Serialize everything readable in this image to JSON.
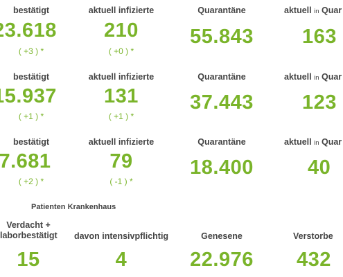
{
  "rows": [
    {
      "bestaetigt_label": "bestätigt",
      "bestaetigt_value": "23.618",
      "bestaetigt_delta": "( +3 ) *",
      "infizierte_label": "aktuell infizierte",
      "infizierte_value": "210",
      "infizierte_delta": "( +0 ) *",
      "quarantaene_label": "Quarantäne",
      "quarantaene_value": "55.843",
      "aktuell_quar_label_a": "aktuell",
      "aktuell_quar_label_b": "in",
      "aktuell_quar_label_c": "Quar",
      "aktuell_quar_value": "163"
    },
    {
      "bestaetigt_label": "bestätigt",
      "bestaetigt_value": "15.937",
      "bestaetigt_delta": "( +1 ) *",
      "infizierte_label": "aktuell infizierte",
      "infizierte_value": "131",
      "infizierte_delta": "( +1 ) *",
      "quarantaene_label": "Quarantäne",
      "quarantaene_value": "37.443",
      "aktuell_quar_label_a": "aktuell",
      "aktuell_quar_label_b": "in",
      "aktuell_quar_label_c": "Quar",
      "aktuell_quar_value": "123"
    },
    {
      "bestaetigt_label": "bestätigt",
      "bestaetigt_value": "7.681",
      "bestaetigt_delta": "( +2 ) *",
      "infizierte_label": "aktuell infizierte",
      "infizierte_value": "79",
      "infizierte_delta": "( -1 ) *",
      "quarantaene_label": "Quarantäne",
      "quarantaene_value": "18.400",
      "aktuell_quar_label_a": "aktuell",
      "aktuell_quar_label_b": "in",
      "aktuell_quar_label_c": "Quar",
      "aktuell_quar_value": "40"
    }
  ],
  "bottom": {
    "section_title": "Patienten Krankenhaus",
    "verdacht_label_1": "Verdacht +",
    "verdacht_label_2": "laborbestätigt",
    "verdacht_value": "15",
    "intensiv_label": "davon intensivpflichtig",
    "intensiv_value": "4",
    "genesene_label": "Genesene",
    "genesene_value": "22.976",
    "verstorbene_label": "Verstorbe",
    "verstorbene_value": "432"
  }
}
